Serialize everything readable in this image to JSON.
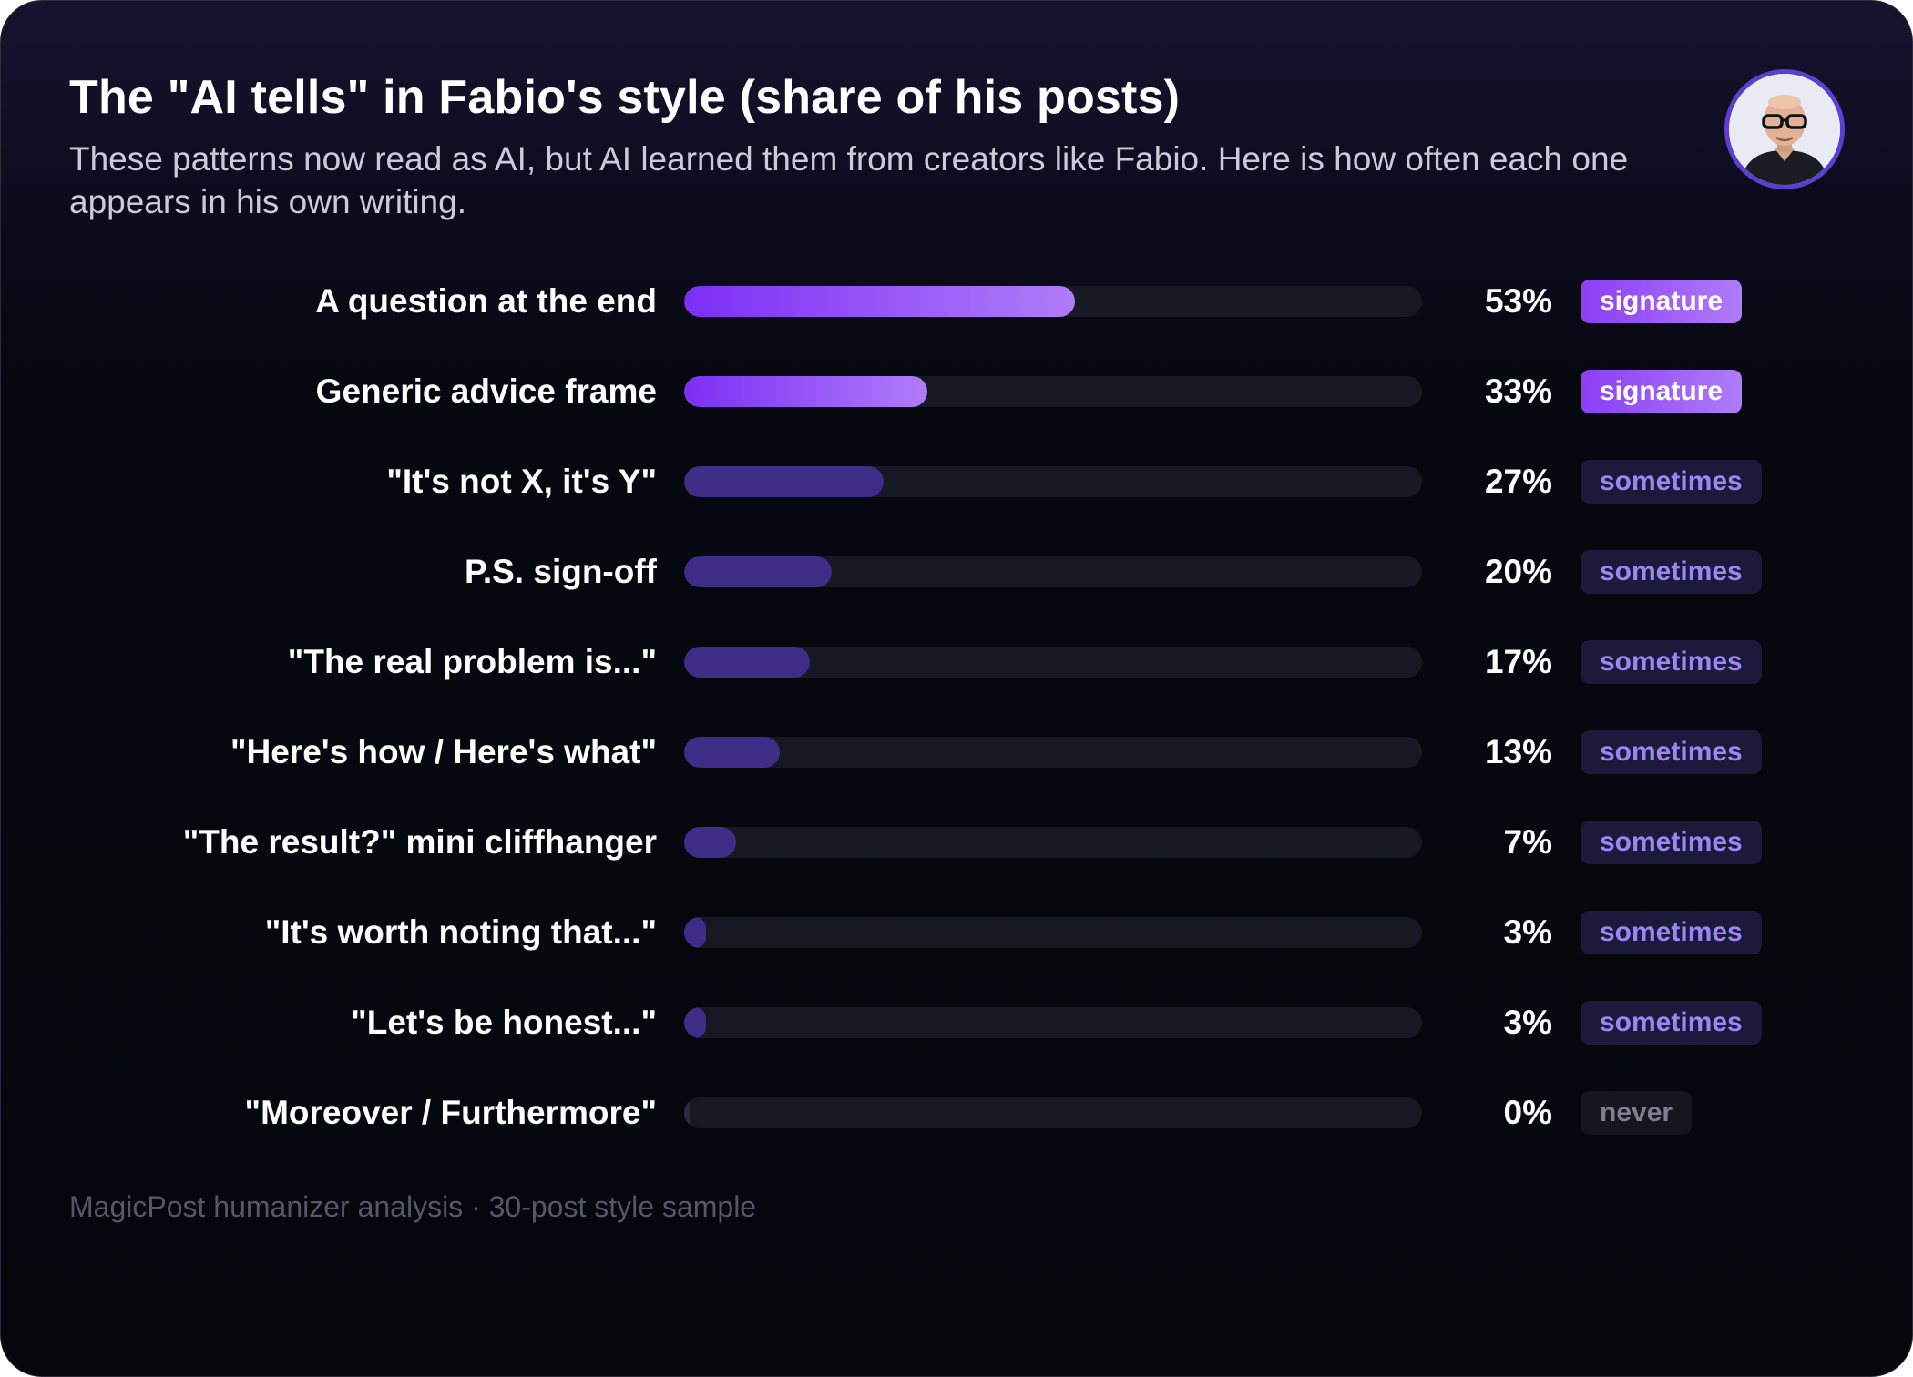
{
  "title": "The \"AI tells\" in Fabio's style (share of his posts)",
  "subtitle": "These patterns now read as AI, but AI learned them from creators like Fabio. Here is how often each one appears in his own writing.",
  "avatar_icon": "person-portrait-icon",
  "footnote": "MagicPost humanizer analysis · 30-post style sample",
  "colors": {
    "signature_bar_start": "#7c2ff5",
    "signature_bar_end": "#b07cf9",
    "sometimes_bar": "#3d2d86",
    "never_bar": "#2a2d3a",
    "track": "#161923",
    "signature_badge": "#9b5cf6",
    "sometimes_badge_text": "#9b86f3",
    "never_badge_text": "#7c8090"
  },
  "chart_data": {
    "type": "bar",
    "orientation": "horizontal",
    "unit": "%",
    "xlim": [
      0,
      100
    ],
    "grid": false,
    "categories": [
      "A question at the end",
      "Generic advice frame",
      "\"It's not X, it's Y\"",
      "P.S. sign-off",
      "\"The real problem is...\"",
      "\"Here's how / Here's what\"",
      "\"The result?\" mini cliffhanger",
      "\"It's worth noting that...\"",
      "\"Let's be honest...\"",
      "\"Moreover / Furthermore\""
    ],
    "values": [
      53,
      33,
      27,
      20,
      17,
      13,
      7,
      3,
      3,
      0
    ],
    "value_labels": [
      "53%",
      "33%",
      "27%",
      "20%",
      "17%",
      "13%",
      "7%",
      "3%",
      "3%",
      "0%"
    ],
    "tags": [
      "signature",
      "signature",
      "sometimes",
      "sometimes",
      "sometimes",
      "sometimes",
      "sometimes",
      "sometimes",
      "sometimes",
      "never"
    ]
  }
}
